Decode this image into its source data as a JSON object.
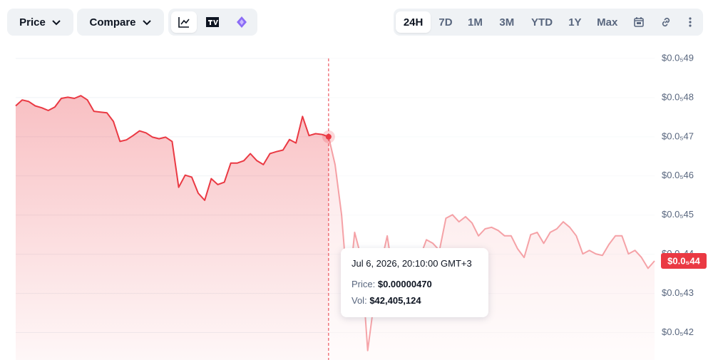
{
  "toolbar": {
    "price": "Price",
    "compare": "Compare",
    "ranges": [
      "24H",
      "7D",
      "1M",
      "3M",
      "YTD",
      "1Y",
      "Max"
    ],
    "active_range": "24H"
  },
  "chart_data": {
    "type": "line",
    "series": [
      {
        "color": "#ea3943",
        "values": [
          4.779e-06,
          4.794e-06,
          4.79e-06,
          4.779e-06,
          4.774e-06,
          4.767e-06,
          4.776e-06,
          4.798e-06,
          4.801e-06,
          4.798e-06,
          4.805e-06,
          4.794e-06,
          4.765e-06,
          4.763e-06,
          4.761e-06,
          4.739e-06,
          4.688e-06,
          4.692e-06,
          4.703e-06,
          4.715e-06,
          4.71e-06,
          4.699e-06,
          4.695e-06,
          4.699e-06,
          4.688e-06,
          4.571e-06,
          4.602e-06,
          4.597e-06,
          4.556e-06,
          4.538e-06,
          4.593e-06,
          4.578e-06,
          4.584e-06,
          4.633e-06,
          4.633e-06,
          4.639e-06,
          4.657e-06,
          4.639e-06,
          4.629e-06,
          4.657e-06,
          4.662e-06,
          4.666e-06,
          4.693e-06,
          4.684e-06,
          4.752e-06,
          4.703e-06,
          4.708e-06,
          4.706e-06,
          4.7e-06,
          4.629e-06,
          4.501e-06,
          4.291e-06,
          4.456e-06,
          4.392e-06,
          4.154e-06,
          4.282e-06,
          4.373e-06,
          4.447e-06,
          4.337e-06,
          4.355e-06,
          4.392e-06,
          4.383e-06,
          4.392e-06,
          4.437e-06,
          4.428e-06,
          4.41e-06,
          4.492e-06,
          4.501e-06,
          4.483e-06,
          4.496e-06,
          4.48e-06,
          4.447e-06,
          4.465e-06,
          4.469e-06,
          4.461e-06,
          4.447e-06,
          4.447e-06,
          4.414e-06,
          4.392e-06,
          4.45e-06,
          4.456e-06,
          4.428e-06,
          4.456e-06,
          4.465e-06,
          4.483e-06,
          4.469e-06,
          4.447e-06,
          4.401e-06,
          4.41e-06,
          4.401e-06,
          4.397e-06,
          4.425e-06,
          4.447e-06,
          4.447e-06,
          4.401e-06,
          4.41e-06,
          4.392e-06,
          4.364e-06,
          4.383e-06
        ]
      }
    ],
    "ylim": [
      4.13e-06,
      4.94e-06
    ],
    "yticks": [
      {
        "value": 4.2e-06,
        "label": "$0.0₅42"
      },
      {
        "value": 4.3e-06,
        "label": "$0.0₅43"
      },
      {
        "value": 4.4e-06,
        "label": "$0.0₅44"
      },
      {
        "value": 4.5e-06,
        "label": "$0.0₅45"
      },
      {
        "value": 4.6e-06,
        "label": "$0.0₅46"
      },
      {
        "value": 4.7e-06,
        "label": "$0.0₅47"
      },
      {
        "value": 4.8e-06,
        "label": "$0.0₅48"
      },
      {
        "value": 4.9e-06,
        "label": "$0.0₅49"
      }
    ],
    "grid": true,
    "hover_index": 48,
    "last_price": {
      "value": 4.383e-06,
      "label": "$0.0₅44"
    }
  },
  "tooltip": {
    "date": "Jul 6, 2026, 20:10:00 GMT+3",
    "price_label": "Price:",
    "price": "$0.00000470",
    "vol_label": "Vol:",
    "vol": "$42,405,124"
  }
}
